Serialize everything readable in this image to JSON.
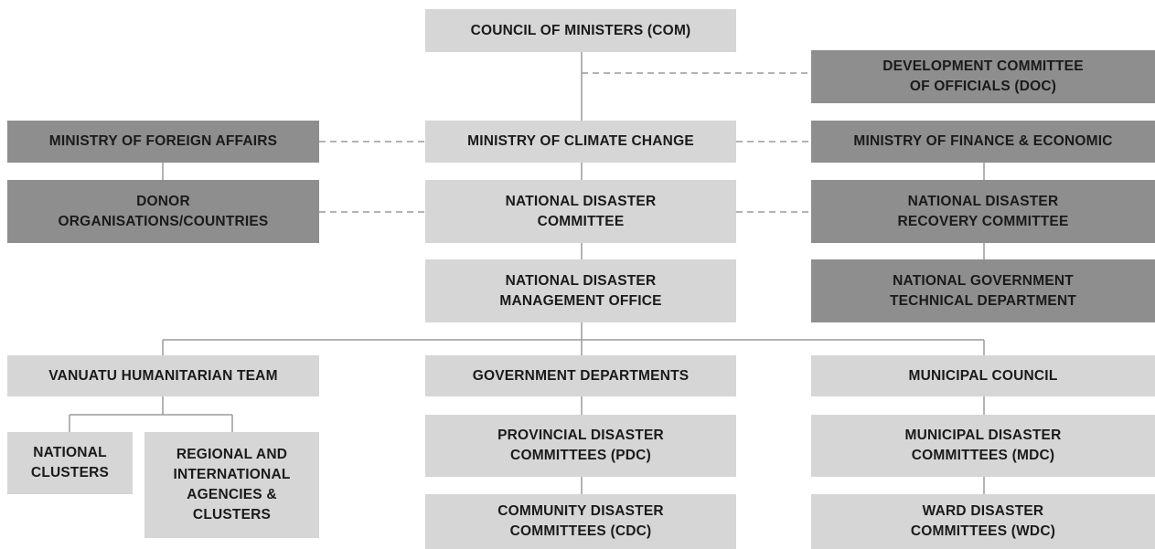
{
  "nodes": [
    {
      "lines": [
        "COUNCIL OF MINISTERS (COM)"
      ]
    },
    {
      "lines": [
        "DEVELOPMENT COMMITTEE",
        "OF OFFICIALS (DOC)"
      ]
    },
    {
      "lines": [
        "MINISTRY OF FOREIGN AFFAIRS"
      ]
    },
    {
      "lines": [
        "MINISTRY OF CLIMATE CHANGE"
      ]
    },
    {
      "lines": [
        "MINISTRY OF FINANCE & ECONOMIC"
      ]
    },
    {
      "lines": [
        "DONOR",
        "ORGANISATIONS/COUNTRIES"
      ]
    },
    {
      "lines": [
        "NATIONAL DISASTER",
        "COMMITTEE"
      ]
    },
    {
      "lines": [
        "NATIONAL DISASTER",
        "RECOVERY COMMITTEE"
      ]
    },
    {
      "lines": [
        "NATIONAL DISASTER",
        "MANAGEMENT OFFICE"
      ]
    },
    {
      "lines": [
        "NATIONAL GOVERNMENT",
        "TECHNICAL DEPARTMENT"
      ]
    },
    {
      "lines": [
        "VANUATU HUMANITARIAN TEAM"
      ]
    },
    {
      "lines": [
        "GOVERNMENT DEPARTMENTS"
      ]
    },
    {
      "lines": [
        "MUNICIPAL COUNCIL"
      ]
    },
    {
      "lines": [
        "NATIONAL",
        "CLUSTERS"
      ]
    },
    {
      "lines": [
        "REGIONAL AND",
        "INTERNATIONAL",
        "AGENCIES &",
        "CLUSTERS"
      ]
    },
    {
      "lines": [
        "PROVINCIAL DISASTER",
        "COMMITTEES (PDC)"
      ]
    },
    {
      "lines": [
        "MUNICIPAL DISASTER",
        "COMMITTEES (MDC)"
      ]
    },
    {
      "lines": [
        "COMMUNITY DISASTER",
        "COMMITTEES (CDC)"
      ]
    },
    {
      "lines": [
        "WARD DISASTER",
        "COMMITTEES (WDC)"
      ]
    }
  ]
}
